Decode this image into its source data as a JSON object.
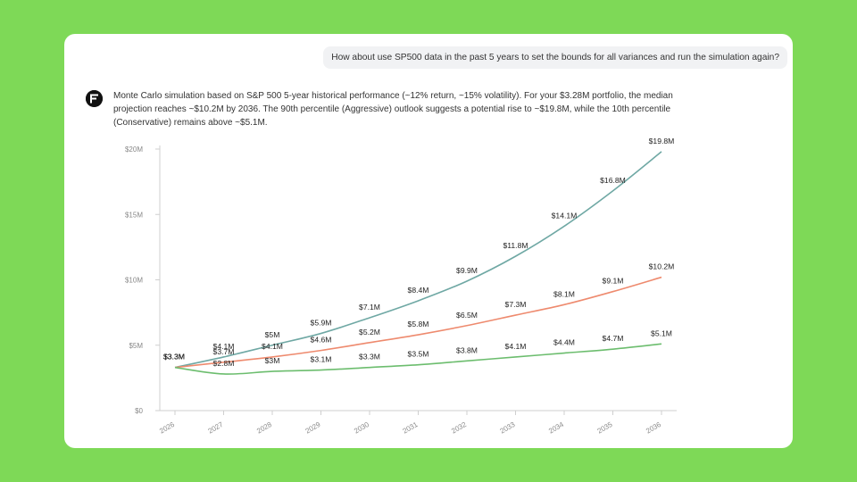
{
  "conversation": {
    "user_message": "How about use SP500 data in the past 5 years to set the bounds for all variances and run the simulation again?",
    "assistant_message": "Monte Carlo simulation based on S&P 500 5-year historical performance (~12% return, ~15% volatility). For your $3.28M portfolio, the median projection reaches ~$10.2M by 2036. The 90th percentile (Aggressive) outlook suggests a potential rise to ~$19.8M, while the 10th percentile (Conservative) remains above ~$5.1M."
  },
  "colors": {
    "background": "#7ed957",
    "aggressive": "#6fa8a4",
    "median": "#ee8a6e",
    "conservative": "#6cbd6e"
  },
  "chart_data": {
    "type": "line",
    "x": [
      "2026",
      "2027",
      "2028",
      "2029",
      "2030",
      "2031",
      "2032",
      "2033",
      "2034",
      "2035",
      "2036"
    ],
    "ylim": [
      0,
      20
    ],
    "yticks": [
      0,
      5,
      10,
      15,
      20
    ],
    "ytick_labels": [
      "$0",
      "$5M",
      "$10M",
      "$15M",
      "$20M"
    ],
    "grid": false,
    "legend": "none",
    "series": [
      {
        "key": "aggressive",
        "values": [
          3.3,
          4.1,
          5.0,
          5.9,
          7.1,
          8.4,
          9.9,
          11.8,
          14.1,
          16.8,
          19.8
        ],
        "labels": [
          "$3.3M",
          "$4.1M",
          "$5M",
          "$5.9M",
          "$7.1M",
          "$8.4M",
          "$9.9M",
          "$11.8M",
          "$14.1M",
          "$16.8M",
          "$19.8M"
        ]
      },
      {
        "key": "median",
        "values": [
          3.3,
          3.7,
          4.1,
          4.6,
          5.2,
          5.8,
          6.5,
          7.3,
          8.1,
          9.1,
          10.2
        ],
        "labels": [
          "$3.3M",
          "$3.7M",
          "$4.1M",
          "$4.6M",
          "$5.2M",
          "$5.8M",
          "$6.5M",
          "$7.3M",
          "$8.1M",
          "$9.1M",
          "$10.2M"
        ]
      },
      {
        "key": "conservative",
        "values": [
          3.3,
          2.8,
          3.0,
          3.1,
          3.3,
          3.5,
          3.8,
          4.1,
          4.4,
          4.7,
          5.1
        ],
        "labels": [
          "$3.3M",
          "$2.8M",
          "$3M",
          "$3.1M",
          "$3.3M",
          "$3.5M",
          "$3.8M",
          "$4.1M",
          "$4.4M",
          "$4.7M",
          "$5.1M"
        ]
      }
    ]
  }
}
